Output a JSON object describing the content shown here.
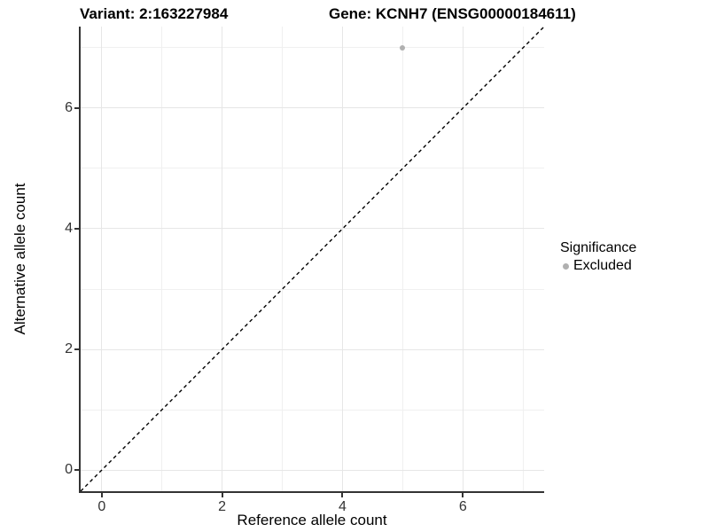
{
  "chart_data": {
    "type": "scatter",
    "title_left": "Variant: 2:163227984",
    "title_right": "Gene: KCNH7 (ENSG00000184611)",
    "xlabel": "Reference allele count",
    "ylabel": "Alternative allele count",
    "xlim": [
      -0.35,
      7.35
    ],
    "ylim": [
      -0.35,
      7.35
    ],
    "x_major_ticks": [
      0,
      2,
      4,
      6
    ],
    "y_major_ticks": [
      0,
      2,
      4,
      6
    ],
    "x_minor_gridlines": [
      1,
      3,
      5,
      7
    ],
    "y_minor_gridlines": [
      1,
      3,
      5,
      7
    ],
    "grid": "on",
    "legend_position": "right",
    "series": [
      {
        "name": "Excluded",
        "color": "#b0b0b0",
        "points": [
          {
            "x": 5,
            "y": 7
          }
        ]
      }
    ],
    "reference_line": {
      "type": "identity",
      "slope": 1,
      "intercept": 0,
      "style": "dashed",
      "color": "#000000"
    },
    "legend": {
      "title": "Significance",
      "items": [
        {
          "label": "Excluded",
          "marker_color": "#b0b0b0"
        }
      ]
    }
  },
  "colors": {
    "background": "#ffffff",
    "grid_major": "#e6e6e6",
    "grid_minor": "#f0f0f0",
    "axis": "#333333",
    "point": "#b0b0b0"
  }
}
